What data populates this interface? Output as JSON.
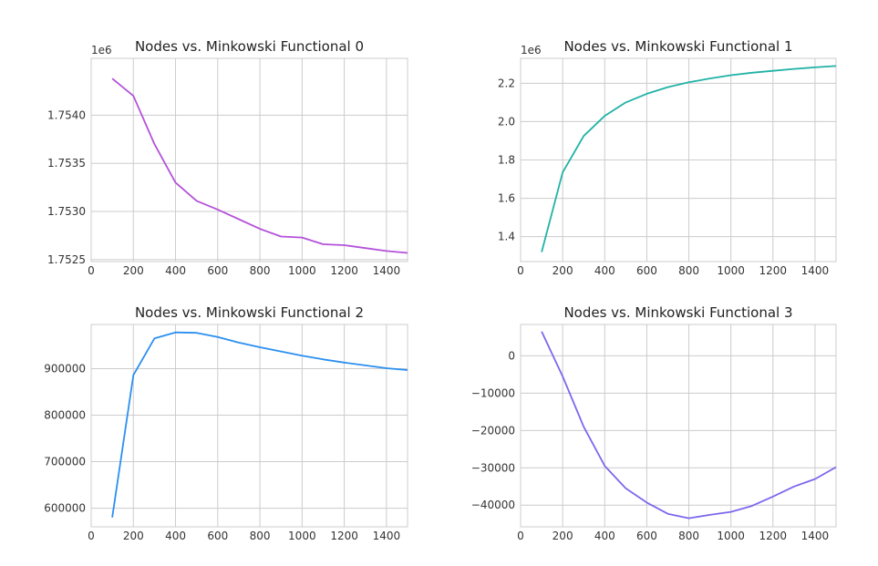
{
  "chart_data": [
    {
      "type": "line",
      "title": "Nodes vs. Minkowski Functional 0",
      "offset_label": "1e6",
      "xlabel": "",
      "ylabel": "",
      "xlim": [
        0,
        1500
      ],
      "ylim": [
        1.75248,
        1.75459
      ],
      "xticks": [
        0,
        200,
        400,
        600,
        800,
        1000,
        1200,
        1400
      ],
      "xtick_labels": [
        "0",
        "200",
        "400",
        "600",
        "800",
        "1000",
        "1200",
        "1400"
      ],
      "yticks": [
        1.7525,
        1.753,
        1.7535,
        1.754
      ],
      "ytick_labels": [
        "1.7525",
        "1.7530",
        "1.7535",
        "1.7540"
      ],
      "grid": true,
      "color": "#b452d9",
      "series": [
        {
          "x": [
            100,
            200,
            300,
            400,
            500,
            600,
            700,
            800,
            900,
            1000,
            1100,
            1200,
            1300,
            1400,
            1500
          ],
          "y": [
            1.75438,
            1.7542,
            1.7537,
            1.7533,
            1.75311,
            1.75302,
            1.75292,
            1.75282,
            1.75274,
            1.75273,
            1.75266,
            1.75265,
            1.75262,
            1.75259,
            1.75257
          ]
        }
      ]
    },
    {
      "type": "line",
      "title": "Nodes vs. Minkowski Functional 1",
      "offset_label": "1e6",
      "xlabel": "",
      "ylabel": "",
      "xlim": [
        0,
        1500
      ],
      "ylim": [
        1.27,
        2.33
      ],
      "xticks": [
        0,
        200,
        400,
        600,
        800,
        1000,
        1200,
        1400
      ],
      "xtick_labels": [
        "0",
        "200",
        "400",
        "600",
        "800",
        "1000",
        "1200",
        "1400"
      ],
      "yticks": [
        1.4,
        1.6,
        1.8,
        2.0,
        2.2
      ],
      "ytick_labels": [
        "1.4",
        "1.6",
        "1.8",
        "2.0",
        "2.2"
      ],
      "grid": true,
      "color": "#20b2a6",
      "series": [
        {
          "x": [
            100,
            200,
            300,
            400,
            500,
            600,
            700,
            800,
            900,
            1000,
            1100,
            1200,
            1300,
            1400,
            1500
          ],
          "y": [
            1.32,
            1.735,
            1.925,
            2.03,
            2.1,
            2.145,
            2.18,
            2.205,
            2.225,
            2.242,
            2.255,
            2.265,
            2.275,
            2.283,
            2.29
          ]
        }
      ]
    },
    {
      "type": "line",
      "title": "Nodes vs. Minkowski Functional 2",
      "offset_label": "",
      "xlabel": "",
      "ylabel": "",
      "xlim": [
        0,
        1500
      ],
      "ylim": [
        560000,
        995000
      ],
      "xticks": [
        0,
        200,
        400,
        600,
        800,
        1000,
        1200,
        1400
      ],
      "xtick_labels": [
        "0",
        "200",
        "400",
        "600",
        "800",
        "1000",
        "1200",
        "1400"
      ],
      "yticks": [
        600000,
        700000,
        800000,
        900000
      ],
      "ytick_labels": [
        "600000",
        "700000",
        "800000",
        "900000"
      ],
      "grid": true,
      "color": "#2b8ff0",
      "series": [
        {
          "x": [
            100,
            200,
            300,
            400,
            500,
            600,
            700,
            800,
            900,
            1000,
            1100,
            1200,
            1300,
            1400,
            1500
          ],
          "y": [
            580000,
            886000,
            965000,
            978000,
            977000,
            968000,
            956000,
            946000,
            937000,
            928000,
            920000,
            913000,
            907000,
            901000,
            897000
          ]
        }
      ]
    },
    {
      "type": "line",
      "title": "Nodes vs. Minkowski Functional 3",
      "offset_label": "",
      "xlabel": "",
      "ylabel": "",
      "xlim": [
        0,
        1500
      ],
      "ylim": [
        -45800,
        8400
      ],
      "xticks": [
        0,
        200,
        400,
        600,
        800,
        1000,
        1200,
        1400
      ],
      "xtick_labels": [
        "0",
        "200",
        "400",
        "600",
        "800",
        "1000",
        "1200",
        "1400"
      ],
      "yticks": [
        0,
        -10000,
        -20000,
        -30000,
        -40000
      ],
      "ytick_labels": [
        "0",
        "−10000",
        "−20000",
        "−30000",
        "−40000"
      ],
      "grid": true,
      "color": "#7b68ee",
      "series": [
        {
          "x": [
            100,
            200,
            300,
            400,
            500,
            600,
            700,
            800,
            900,
            1000,
            1100,
            1200,
            1300,
            1400,
            1500
          ],
          "y": [
            6500,
            -5500,
            -19000,
            -29500,
            -35500,
            -39300,
            -42300,
            -43500,
            -42600,
            -41800,
            -40200,
            -37700,
            -35000,
            -33000,
            -29800
          ]
        }
      ]
    }
  ]
}
